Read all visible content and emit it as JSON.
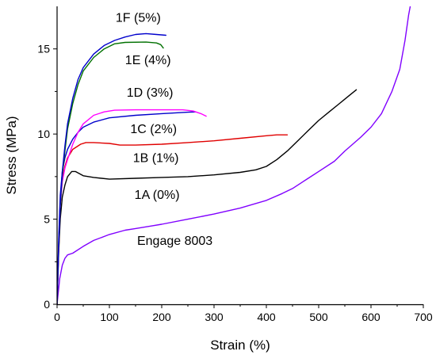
{
  "chart_data": {
    "type": "line",
    "title": "",
    "xlabel": "Strain (%)",
    "ylabel": "Stress (MPa)",
    "xlim": [
      0,
      700
    ],
    "ylim": [
      0,
      17.5
    ],
    "xticks": [
      0,
      100,
      200,
      300,
      400,
      500,
      600,
      700
    ],
    "yticks": [
      0,
      5,
      10,
      15
    ],
    "grid": false,
    "legend": "none",
    "series": [
      {
        "name": "Engage 8003",
        "color": "#8000ff",
        "points": [
          [
            0,
            0
          ],
          [
            2,
            0.6
          ],
          [
            5,
            1.5
          ],
          [
            10,
            2.3
          ],
          [
            15,
            2.7
          ],
          [
            20,
            2.9
          ],
          [
            30,
            3.0
          ],
          [
            50,
            3.4
          ],
          [
            70,
            3.75
          ],
          [
            100,
            4.1
          ],
          [
            130,
            4.35
          ],
          [
            150,
            4.45
          ],
          [
            180,
            4.6
          ],
          [
            200,
            4.7
          ],
          [
            250,
            5.0
          ],
          [
            300,
            5.3
          ],
          [
            350,
            5.65
          ],
          [
            400,
            6.1
          ],
          [
            430,
            6.5
          ],
          [
            450,
            6.8
          ],
          [
            480,
            7.4
          ],
          [
            500,
            7.8
          ],
          [
            530,
            8.4
          ],
          [
            550,
            9.0
          ],
          [
            580,
            9.8
          ],
          [
            600,
            10.4
          ],
          [
            620,
            11.2
          ],
          [
            640,
            12.5
          ],
          [
            655,
            13.8
          ],
          [
            665,
            15.5
          ],
          [
            672,
            17.0
          ],
          [
            675,
            17.5
          ]
        ]
      },
      {
        "name": "1A (0%)",
        "color": "#000000",
        "points": [
          [
            0,
            0
          ],
          [
            3,
            3.0
          ],
          [
            6,
            5.0
          ],
          [
            10,
            6.3
          ],
          [
            15,
            7.0
          ],
          [
            20,
            7.5
          ],
          [
            28,
            7.8
          ],
          [
            35,
            7.8
          ],
          [
            50,
            7.55
          ],
          [
            70,
            7.45
          ],
          [
            100,
            7.35
          ],
          [
            150,
            7.4
          ],
          [
            200,
            7.45
          ],
          [
            250,
            7.5
          ],
          [
            300,
            7.6
          ],
          [
            350,
            7.75
          ],
          [
            380,
            7.9
          ],
          [
            400,
            8.1
          ],
          [
            420,
            8.5
          ],
          [
            440,
            9.0
          ],
          [
            460,
            9.6
          ],
          [
            480,
            10.2
          ],
          [
            500,
            10.8
          ],
          [
            520,
            11.3
          ],
          [
            540,
            11.8
          ],
          [
            560,
            12.3
          ],
          [
            572,
            12.6
          ]
        ]
      },
      {
        "name": "1B (1%)",
        "color": "#e00000",
        "points": [
          [
            0,
            0
          ],
          [
            3,
            3.4
          ],
          [
            6,
            6.0
          ],
          [
            10,
            7.4
          ],
          [
            15,
            8.1
          ],
          [
            20,
            8.6
          ],
          [
            30,
            9.1
          ],
          [
            45,
            9.4
          ],
          [
            55,
            9.5
          ],
          [
            70,
            9.5
          ],
          [
            100,
            9.45
          ],
          [
            120,
            9.35
          ],
          [
            150,
            9.35
          ],
          [
            200,
            9.4
          ],
          [
            250,
            9.5
          ],
          [
            300,
            9.6
          ],
          [
            350,
            9.75
          ],
          [
            400,
            9.9
          ],
          [
            420,
            9.95
          ],
          [
            440,
            9.95
          ]
        ]
      },
      {
        "name": "1C (2%)",
        "color": "#0000cc",
        "points": [
          [
            0,
            0
          ],
          [
            3,
            3.8
          ],
          [
            6,
            6.4
          ],
          [
            10,
            7.8
          ],
          [
            15,
            8.6
          ],
          [
            20,
            9.1
          ],
          [
            30,
            9.7
          ],
          [
            40,
            10.1
          ],
          [
            50,
            10.4
          ],
          [
            70,
            10.7
          ],
          [
            100,
            10.95
          ],
          [
            150,
            11.1
          ],
          [
            200,
            11.2
          ],
          [
            250,
            11.28
          ],
          [
            265,
            11.3
          ]
        ]
      },
      {
        "name": "1D (3%)",
        "color": "#ff00ff",
        "points": [
          [
            0,
            0
          ],
          [
            3,
            3.2
          ],
          [
            6,
            5.8
          ],
          [
            10,
            7.2
          ],
          [
            15,
            8.0
          ],
          [
            20,
            8.5
          ],
          [
            30,
            9.4
          ],
          [
            40,
            10.1
          ],
          [
            50,
            10.6
          ],
          [
            70,
            11.1
          ],
          [
            90,
            11.3
          ],
          [
            110,
            11.4
          ],
          [
            150,
            11.42
          ],
          [
            200,
            11.42
          ],
          [
            240,
            11.42
          ],
          [
            260,
            11.35
          ],
          [
            275,
            11.2
          ],
          [
            285,
            11.05
          ]
        ]
      },
      {
        "name": "1E (4%)",
        "color": "#007000",
        "points": [
          [
            0,
            0
          ],
          [
            3,
            3.3
          ],
          [
            6,
            5.8
          ],
          [
            10,
            7.6
          ],
          [
            15,
            9.0
          ],
          [
            20,
            10.3
          ],
          [
            30,
            11.8
          ],
          [
            40,
            12.9
          ],
          [
            50,
            13.7
          ],
          [
            70,
            14.5
          ],
          [
            90,
            15.0
          ],
          [
            110,
            15.3
          ],
          [
            130,
            15.38
          ],
          [
            170,
            15.4
          ],
          [
            190,
            15.35
          ],
          [
            198,
            15.25
          ],
          [
            203,
            15.05
          ]
        ]
      },
      {
        "name": "1F (5%)",
        "color": "#0000cc",
        "points": [
          [
            0,
            0
          ],
          [
            3,
            3.5
          ],
          [
            6,
            6.0
          ],
          [
            10,
            7.8
          ],
          [
            15,
            9.3
          ],
          [
            20,
            10.6
          ],
          [
            30,
            12.1
          ],
          [
            40,
            13.2
          ],
          [
            50,
            13.9
          ],
          [
            70,
            14.7
          ],
          [
            90,
            15.2
          ],
          [
            110,
            15.5
          ],
          [
            130,
            15.7
          ],
          [
            150,
            15.85
          ],
          [
            170,
            15.9
          ],
          [
            190,
            15.85
          ],
          [
            208,
            15.8
          ]
        ]
      }
    ],
    "annotations": [
      {
        "text": "1F (5%)",
        "x": 112,
        "y": 16.6
      },
      {
        "text": "1E (4%)",
        "x": 130,
        "y": 14.1
      },
      {
        "text": "1D (3%)",
        "x": 133,
        "y": 12.2
      },
      {
        "text": "1C (2%)",
        "x": 140,
        "y": 10.05
      },
      {
        "text": "1B (1%)",
        "x": 145,
        "y": 8.35
      },
      {
        "text": "1A (0%)",
        "x": 148,
        "y": 6.2
      },
      {
        "text": "Engage 8003",
        "x": 153,
        "y": 3.5
      }
    ]
  }
}
